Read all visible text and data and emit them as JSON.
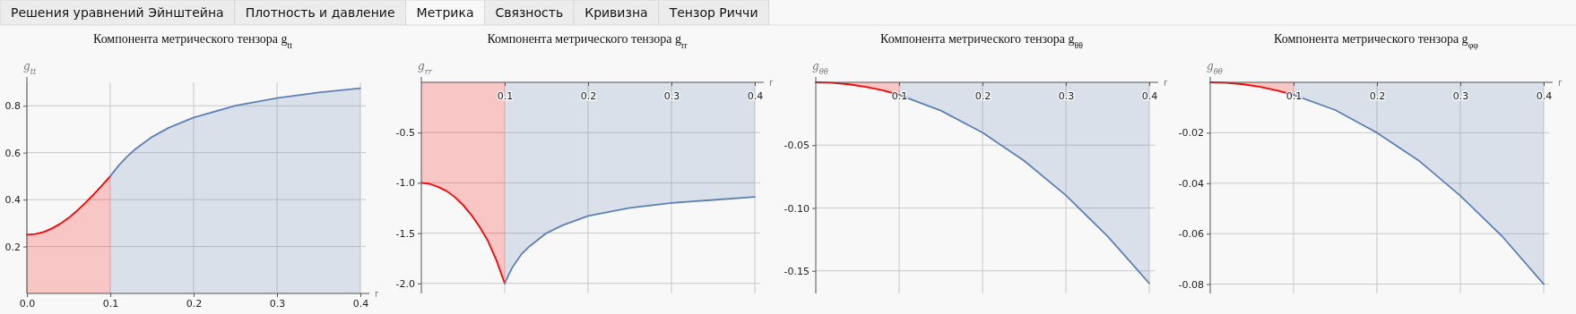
{
  "chart_data": [
    {
      "type": "area",
      "title": "Компонента метрического тензора g$_{tt}$",
      "xlabel": "r",
      "ylabel": "g$_{tt}$",
      "annotations": [
        "Решения уравнений Эйнштейна",
        "Плотность и давление",
        "Метрика",
        "Связность",
        "Кривизна",
        "Тензор Риччи"
      ],
      "xlim": [
        0,
        0.4
      ],
      "ylim": [
        0,
        0.9
      ],
      "xticks": [
        {
          "value": 0,
          "label": "0.0"
        },
        0.1,
        0.2,
        0.3,
        0.4
      ],
      "yticks": [
        0.2,
        0.4,
        0.6,
        0.8
      ],
      "grid": true,
      "series": [
        {
          "color": "#ff0000",
          "x": [
            0,
            0.01,
            0.02,
            0.03,
            0.04,
            0.05,
            0.06,
            0.07,
            0.08,
            0.09,
            0.1
          ],
          "values": [
            0.25,
            0.253,
            0.262,
            0.277,
            0.297,
            0.322,
            0.352,
            0.386,
            0.422,
            0.46,
            0.5
          ]
        },
        {
          "color": "#5e81b5",
          "x": [
            0.1,
            0.11,
            0.12,
            0.13,
            0.15,
            0.17,
            0.2,
            0.25,
            0.3,
            0.35,
            0.4
          ],
          "values": [
            0.5,
            0.545,
            0.583,
            0.615,
            0.667,
            0.706,
            0.75,
            0.8,
            0.833,
            0.857,
            0.875
          ]
        }
      ]
    },
    {
      "type": "area",
      "title": "Компонента метрического тензора g$_{rr}$",
      "xlabel": "r",
      "ylabel": "g$_{rr}$",
      "xlim": [
        0,
        0.4
      ],
      "ylim": [
        -2.1,
        0
      ],
      "xticks": [
        0.1,
        0.2,
        0.3,
        0.4
      ],
      "yticks": [
        -0.5,
        {
          "value": -1,
          "label": "-1.0"
        },
        -1.5,
        {
          "value": -2,
          "label": "-2.0"
        }
      ],
      "grid": true,
      "series": [
        {
          "color": "#ff0000",
          "x": [
            0,
            0.01,
            0.02,
            0.03,
            0.04,
            0.05,
            0.06,
            0.07,
            0.08,
            0.09,
            0.1
          ],
          "values": [
            -1,
            -1.01,
            -1.04,
            -1.08,
            -1.14,
            -1.22,
            -1.32,
            -1.44,
            -1.58,
            -1.77,
            -2
          ]
        },
        {
          "color": "#5e81b5",
          "x": [
            0.1,
            0.105,
            0.11,
            0.12,
            0.13,
            0.15,
            0.17,
            0.2,
            0.25,
            0.3,
            0.35,
            0.4
          ],
          "values": [
            -2,
            -1.91,
            -1.83,
            -1.71,
            -1.63,
            -1.5,
            -1.42,
            -1.33,
            -1.25,
            -1.2,
            -1.17,
            -1.14
          ]
        }
      ]
    },
    {
      "type": "area",
      "title": "Компонента метрического тензора g$_{θθ}$",
      "xlabel": "r",
      "ylabel": "g$_{θθ}$",
      "xlim": [
        0,
        0.4
      ],
      "ylim": [
        -0.168,
        0
      ],
      "xticks": [
        0.1,
        0.2,
        0.3,
        0.4
      ],
      "yticks": [
        -0.05,
        {
          "value": -0.1,
          "label": "-0.10"
        },
        -0.15
      ],
      "grid": true,
      "series": [
        {
          "color": "#ff0000",
          "x": [
            0,
            0.02,
            0.04,
            0.06,
            0.08,
            0.1
          ],
          "values": [
            0,
            -0.0004,
            -0.0016,
            -0.0036,
            -0.0064,
            -0.01
          ]
        },
        {
          "color": "#5e81b5",
          "x": [
            0.1,
            0.15,
            0.2,
            0.25,
            0.3,
            0.35,
            0.4
          ],
          "values": [
            -0.01,
            -0.0225,
            -0.04,
            -0.0625,
            -0.09,
            -0.1225,
            -0.16
          ]
        }
      ]
    },
    {
      "type": "area",
      "title": "Компонента метрического тензора g$_{φφ}$",
      "xlabel": "r",
      "ylabel": "g$_{θθ}$",
      "xlim": [
        0,
        0.4
      ],
      "ylim": [
        -0.0837,
        0
      ],
      "xticks": [
        0.1,
        0.2,
        0.3,
        0.4
      ],
      "yticks": [
        -0.02,
        -0.04,
        -0.06,
        -0.08
      ],
      "grid": true,
      "series": [
        {
          "color": "#ff0000",
          "x": [
            0,
            0.02,
            0.04,
            0.06,
            0.08,
            0.1
          ],
          "values": [
            0,
            -0.0002,
            -0.0008,
            -0.0018,
            -0.0032,
            -0.005
          ]
        },
        {
          "color": "#5e81b5",
          "x": [
            0.1,
            0.15,
            0.2,
            0.25,
            0.3,
            0.35,
            0.4
          ],
          "values": [
            -0.005,
            -0.011,
            -0.02,
            -0.031,
            -0.045,
            -0.061,
            -0.08
          ]
        }
      ]
    }
  ]
}
